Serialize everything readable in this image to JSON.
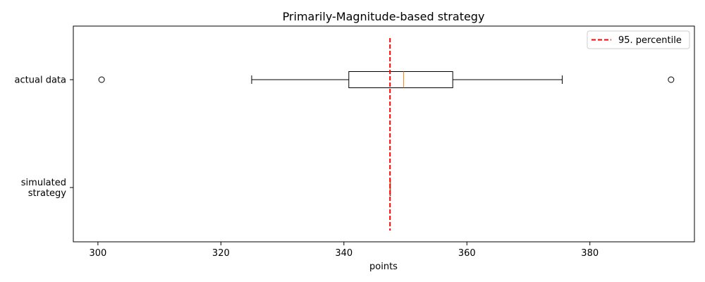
{
  "chart_data": {
    "type": "boxplot",
    "orientation": "horizontal",
    "title": "Primarily-Magnitude-based strategy",
    "xlabel": "points",
    "ylabel": "",
    "xlim": [
      296,
      397
    ],
    "x_ticks": [
      300,
      320,
      340,
      360,
      380
    ],
    "categories": [
      "actual data",
      "simulated\nstrategy"
    ],
    "category_lines": [
      [
        "actual data"
      ],
      [
        "simulated",
        "strategy"
      ]
    ],
    "boxes": [
      {
        "category": "actual data",
        "whisker_low": 325.0,
        "q1": 340.8,
        "median": 349.7,
        "q3": 357.7,
        "whisker_high": 375.5,
        "outliers": [
          300.6,
          393.2
        ]
      },
      {
        "category": "simulated\nstrategy",
        "whisker_low": 347.5,
        "q1": 347.5,
        "median": 347.5,
        "q3": 347.5,
        "whisker_high": 347.5,
        "outliers": []
      }
    ],
    "reference_line": {
      "label": "95. percentile",
      "value": 347.5,
      "color": "#ff0000",
      "style": "dashed"
    },
    "legend": {
      "position": "top-right",
      "entries": [
        "95. percentile"
      ]
    },
    "colors": {
      "box": "#000000",
      "median": "#ff7f0e",
      "reference": "#ff0000"
    },
    "grid": false
  }
}
